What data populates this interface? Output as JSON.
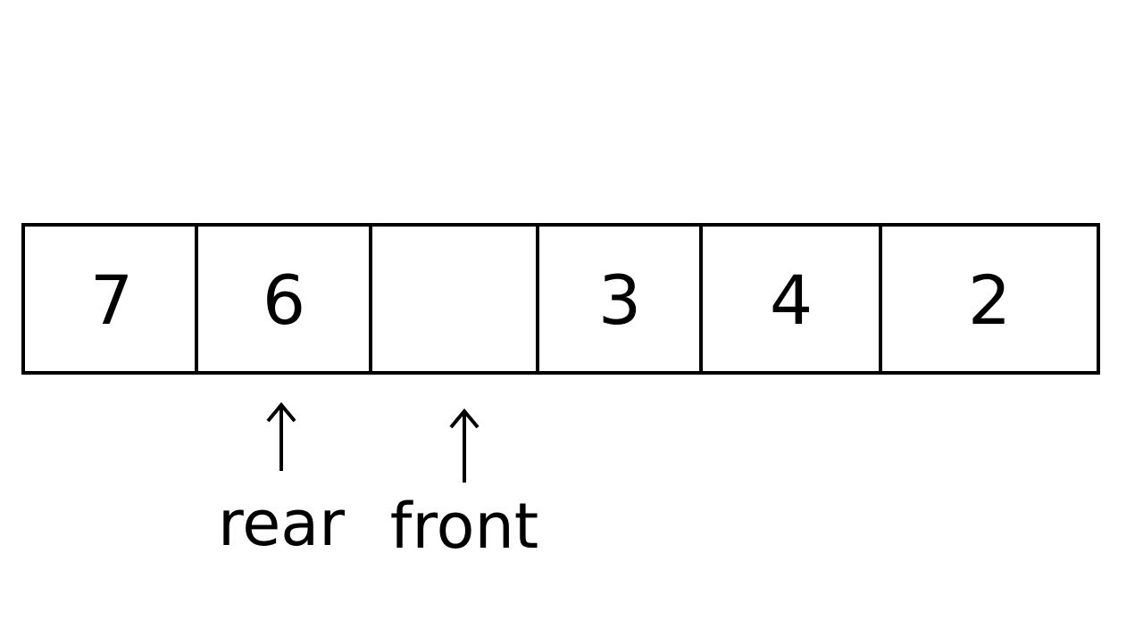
{
  "queue": {
    "cells": [
      "7",
      "6",
      "",
      "3",
      "4",
      "2"
    ]
  },
  "pointers": {
    "rear": "rear",
    "front": "front"
  }
}
